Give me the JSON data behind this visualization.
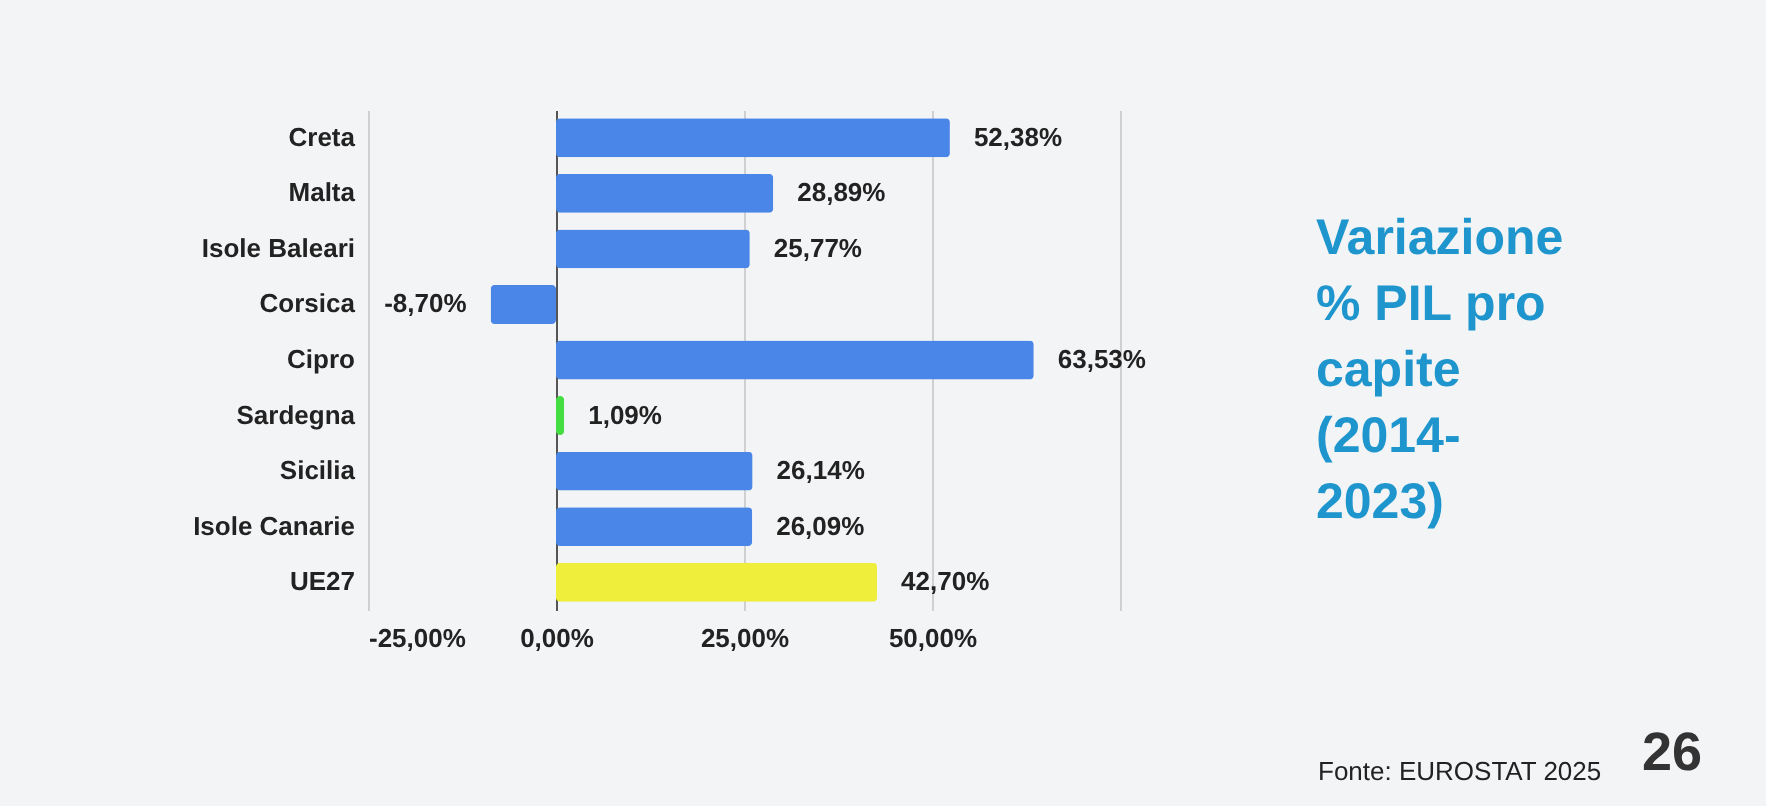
{
  "chart_data": {
    "type": "bar",
    "orientation": "horizontal",
    "title": "Variazione % PIL pro capite (2014-2023)",
    "categories": [
      "Creta",
      "Malta",
      "Isole Baleari",
      "Corsica",
      "Cipro",
      "Sardegna",
      "Sicilia",
      "Isole Canarie",
      "UE27"
    ],
    "values": [
      52.38,
      28.89,
      25.77,
      -8.7,
      63.53,
      1.09,
      26.14,
      26.09,
      42.7
    ],
    "colors": [
      "#4a86e8",
      "#4a86e8",
      "#4a86e8",
      "#4a86e8",
      "#4a86e8",
      "#44dd44",
      "#4a86e8",
      "#4a86e8",
      "#eeee3b"
    ],
    "value_labels": [
      "52,38%",
      "28,89%",
      "25,77%",
      "-8,70%",
      "63,53%",
      "1,09%",
      "26,14%",
      "26,09%",
      "42,70%"
    ],
    "xlim": [
      -25,
      75
    ],
    "xticks": [
      {
        "value": -25,
        "label": "-25,00%"
      },
      {
        "value": 0,
        "label": "0,00%"
      },
      {
        "value": 25,
        "label": "25,00%"
      },
      {
        "value": 50,
        "label": "50,00%"
      },
      {
        "value": 75,
        "label": null
      }
    ],
    "grid": "x",
    "legend": false,
    "annotations": [
      "Fonte: EUROSTAT 2025",
      "26"
    ]
  }
}
